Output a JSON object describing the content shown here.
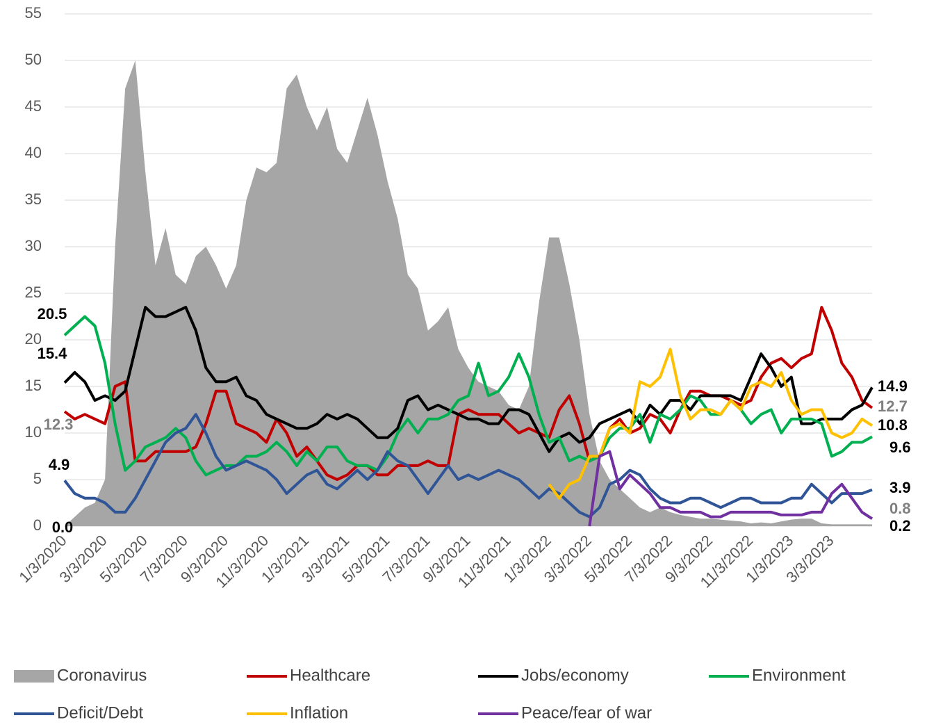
{
  "chart_data": {
    "type": "line",
    "categories": [
      "1/3/2020",
      null,
      null,
      null,
      "3/3/2020",
      null,
      null,
      null,
      "5/3/2020",
      null,
      null,
      null,
      "7/3/2020",
      null,
      null,
      null,
      "9/3/2020",
      null,
      null,
      null,
      "11/3/2020",
      null,
      null,
      null,
      "1/3/2021",
      null,
      null,
      null,
      "3/3/2021",
      null,
      null,
      null,
      "5/3/2021",
      null,
      null,
      null,
      "7/3/2021",
      null,
      null,
      null,
      "9/3/2021",
      null,
      null,
      null,
      "11/3/2021",
      null,
      null,
      null,
      "1/3/2022",
      null,
      null,
      null,
      "3/3/2022",
      null,
      null,
      null,
      "5/3/2022",
      null,
      null,
      null,
      "7/3/2022",
      null,
      null,
      null,
      "9/3/2022",
      null,
      null,
      null,
      "11/3/2022",
      null,
      null,
      null,
      "1/3/2023",
      null,
      null,
      null,
      "3/3/2023",
      null,
      null,
      null,
      null
    ],
    "ylim": [
      0,
      55
    ],
    "yticks": [
      0,
      5,
      10,
      15,
      20,
      25,
      30,
      35,
      40,
      45,
      50,
      55
    ],
    "grid": true,
    "series": [
      {
        "name": "Coronavirus",
        "type": "area",
        "color": "#a6a6a6",
        "label_color": "#000000",
        "end_labels": [
          "first",
          "last"
        ],
        "values": [
          0,
          1,
          2,
          2.5,
          5,
          30,
          47,
          50,
          38,
          28,
          32,
          27,
          26,
          29,
          30,
          28,
          25.5,
          28,
          35,
          38.5,
          38,
          39,
          47,
          48.5,
          45,
          42.5,
          45,
          40.5,
          39,
          42.5,
          46,
          42,
          37,
          33,
          27,
          25.5,
          21,
          22,
          23.5,
          19,
          17,
          15.5,
          15,
          14.5,
          13,
          12.5,
          15,
          24,
          31,
          31,
          26,
          20,
          12,
          7,
          5,
          4,
          3,
          2,
          1.5,
          2,
          1.5,
          1.2,
          1,
          0.8,
          0.8,
          0.7,
          0.6,
          0.5,
          0.3,
          0.4,
          0.3,
          0.5,
          0.7,
          0.8,
          0.8,
          0.3,
          0.2,
          0.2,
          0.2,
          0.2,
          0.2
        ],
        "value_labels": [
          "0.0",
          null,
          null,
          null,
          null,
          null,
          null,
          null,
          null,
          null,
          null,
          null,
          null,
          null,
          null,
          null,
          null,
          null,
          null,
          null,
          null,
          null,
          null,
          null,
          null,
          null,
          null,
          null,
          null,
          null,
          null,
          null,
          null,
          null,
          null,
          null,
          null,
          null,
          null,
          null,
          null,
          null,
          null,
          null,
          null,
          null,
          null,
          null,
          null,
          null,
          null,
          null,
          null,
          null,
          null,
          null,
          null,
          null,
          null,
          null,
          null,
          null,
          null,
          null,
          null,
          null,
          null,
          null,
          null,
          null,
          null,
          null,
          null,
          null,
          null,
          null,
          null,
          null,
          null,
          null,
          "0.2"
        ]
      },
      {
        "name": "Healthcare",
        "type": "line",
        "color": "#c00000",
        "label_color": "#7f7f7f",
        "end_labels": [
          "first",
          "last"
        ],
        "values": [
          12.3,
          11.5,
          12,
          11.5,
          11,
          15,
          15.5,
          7,
          7,
          8,
          8,
          8,
          8,
          8.5,
          11,
          14.5,
          14.5,
          11,
          10.5,
          10,
          9,
          11.5,
          10,
          7.5,
          8.5,
          7,
          5.5,
          5,
          5.5,
          6.5,
          6.5,
          5.5,
          5.5,
          6.5,
          6.5,
          6.5,
          7,
          6.5,
          6.5,
          12,
          12.5,
          12,
          12,
          12,
          11,
          10,
          10.5,
          10,
          9.5,
          12.5,
          14,
          11,
          7,
          7.5,
          10.5,
          11.5,
          10,
          10.5,
          12,
          11.5,
          10,
          12.5,
          14.5,
          14.5,
          14,
          14,
          13.5,
          13,
          13.5,
          16,
          17.5,
          18,
          17,
          18,
          18.5,
          23.5,
          21,
          17.5,
          16,
          13.5,
          12.7
        ]
      },
      {
        "name": "Jobs/economy",
        "type": "line",
        "color": "#000000",
        "label_color": "#000000",
        "end_labels": [
          "first",
          "last"
        ],
        "values": [
          15.4,
          16.5,
          15.5,
          13.5,
          14,
          13.5,
          14.5,
          19,
          23.5,
          22.5,
          22.5,
          23,
          23.5,
          21,
          17,
          15.5,
          15.5,
          16,
          14,
          13.5,
          12,
          11.5,
          11,
          10.5,
          10.5,
          11,
          12,
          11.5,
          12,
          11.5,
          10.5,
          9.5,
          9.5,
          10.5,
          13.5,
          14,
          12.5,
          13,
          12.5,
          12,
          11.5,
          11.5,
          11,
          11,
          12.5,
          12.5,
          12,
          10,
          8,
          9.5,
          10,
          9,
          9.5,
          11,
          11.5,
          12,
          12.5,
          11,
          13,
          12,
          13.5,
          13.5,
          12.5,
          14,
          14,
          14,
          14,
          13.5,
          16,
          18.5,
          17,
          15,
          16,
          11,
          11,
          11.5,
          11.5,
          11.5,
          12.5,
          13,
          14.9
        ]
      },
      {
        "name": "Environment",
        "type": "line",
        "color": "#00b050",
        "label_color": "#000000",
        "end_labels": [
          "first",
          "last"
        ],
        "values": [
          20.5,
          21.5,
          22.5,
          21.5,
          17.5,
          11,
          6,
          7,
          8.5,
          9,
          9.5,
          10.5,
          9.5,
          7,
          5.5,
          6,
          6.5,
          6.5,
          7.5,
          7.5,
          8,
          9,
          8,
          6.5,
          8,
          7,
          8.5,
          8.5,
          7,
          6.5,
          6.5,
          6,
          7.5,
          10,
          11.5,
          10,
          11.5,
          11.5,
          12,
          13.5,
          14,
          17.5,
          14,
          14.5,
          16,
          18.5,
          16,
          12,
          9,
          9.5,
          7,
          7.5,
          7,
          7.5,
          9.5,
          10.5,
          10.5,
          12,
          9,
          12,
          11.5,
          12.5,
          14,
          13.5,
          12,
          12,
          13.5,
          12.5,
          11,
          12,
          12.5,
          10,
          11.5,
          11.5,
          11.5,
          11,
          7.5,
          8,
          9,
          9,
          9.6
        ]
      },
      {
        "name": "Deficit/Debt",
        "type": "line",
        "color": "#2f5597",
        "label_color": "#000000",
        "end_labels": [
          "first",
          "last"
        ],
        "values": [
          4.9,
          3.5,
          3,
          3,
          2.5,
          1.5,
          1.5,
          3,
          5,
          7,
          9,
          10,
          10.5,
          12,
          10,
          7.5,
          6,
          6.5,
          7,
          6.5,
          6,
          5,
          3.5,
          4.5,
          5.5,
          6,
          4.5,
          4,
          5,
          6,
          5,
          6,
          8,
          7,
          6.5,
          5,
          3.5,
          5,
          6.5,
          5,
          5.5,
          5,
          5.5,
          6,
          5.5,
          5,
          4,
          3,
          4,
          3.5,
          2.5,
          1.5,
          1,
          2,
          4.5,
          5,
          6,
          5.5,
          4,
          3,
          2.5,
          2.5,
          3,
          3,
          2.5,
          2,
          2.5,
          3,
          3,
          2.5,
          2.5,
          2.5,
          3,
          3,
          4.5,
          3.5,
          2.5,
          3.5,
          3.5,
          3.5,
          3.9
        ]
      },
      {
        "name": "Inflation",
        "type": "line",
        "color": "#ffc000",
        "label_color": "#000000",
        "end_labels": [
          "last"
        ],
        "values": [
          null,
          null,
          null,
          null,
          null,
          null,
          null,
          null,
          null,
          null,
          null,
          null,
          null,
          null,
          null,
          null,
          null,
          null,
          null,
          null,
          null,
          null,
          null,
          null,
          null,
          null,
          null,
          null,
          null,
          null,
          null,
          null,
          null,
          null,
          null,
          null,
          null,
          null,
          null,
          null,
          null,
          null,
          null,
          null,
          null,
          null,
          null,
          null,
          4.5,
          3,
          4.5,
          5,
          7.5,
          7.5,
          10.5,
          11,
          10,
          15.5,
          15,
          16,
          19,
          14,
          11.5,
          12.5,
          12.5,
          12,
          13.5,
          12.5,
          15,
          15.5,
          15,
          16.5,
          13.5,
          12,
          12.5,
          12.5,
          10,
          9.5,
          10,
          11.5,
          10.8
        ]
      },
      {
        "name": "Peace/fear of war",
        "type": "line",
        "color": "#7030a0",
        "label_color": "#7f7f7f",
        "end_labels": [
          "last"
        ],
        "values": [
          null,
          null,
          null,
          null,
          null,
          null,
          null,
          null,
          null,
          null,
          null,
          null,
          null,
          null,
          null,
          null,
          null,
          null,
          null,
          null,
          null,
          null,
          null,
          null,
          null,
          null,
          null,
          null,
          null,
          null,
          null,
          null,
          null,
          null,
          null,
          null,
          null,
          null,
          null,
          null,
          null,
          null,
          null,
          null,
          null,
          null,
          null,
          null,
          null,
          null,
          null,
          null,
          0,
          7.5,
          8,
          4,
          5.5,
          4.5,
          3.5,
          2,
          2,
          1.5,
          1.5,
          1.5,
          1,
          1,
          1.5,
          1.5,
          1.5,
          1.5,
          1.5,
          1.2,
          1.2,
          1.2,
          1.5,
          1.5,
          3.5,
          4.5,
          3,
          1.5,
          0.8
        ]
      }
    ]
  }
}
